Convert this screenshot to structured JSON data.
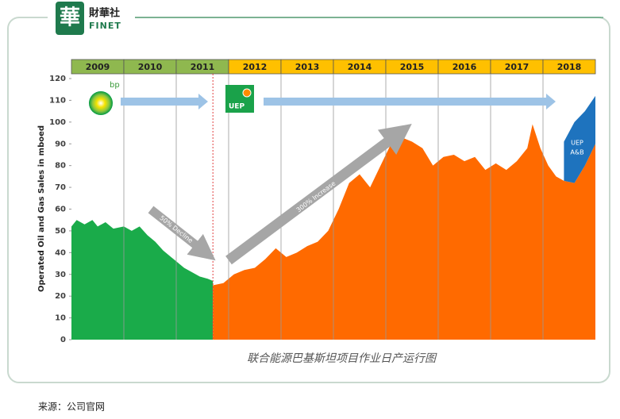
{
  "logo": {
    "glyph": "華",
    "name": "財華社",
    "latin": "FINET"
  },
  "source": "来源：公司官网",
  "chart_data": {
    "type": "area",
    "title": "联合能源巴基斯坦项目作业日产运行图",
    "y_label": "Operated Oil and Gas Sales in mboed",
    "categories": [
      "2009",
      "2010",
      "2011",
      "2012",
      "2013",
      "2014",
      "2015",
      "2016",
      "2017",
      "2018"
    ],
    "category_colors": [
      "#8fb84f",
      "#8fb84f",
      "#8fb84f",
      "#ffc000",
      "#ffc000",
      "#ffc000",
      "#ffc000",
      "#ffc000",
      "#ffc000",
      "#ffc000"
    ],
    "xlim": [
      2009,
      2019
    ],
    "ylim": [
      0,
      120
    ],
    "yticks": [
      0,
      10,
      20,
      30,
      40,
      50,
      60,
      70,
      80,
      90,
      100,
      110,
      120
    ],
    "divider_x": 2011.7,
    "annotations": [
      "50% Decline",
      "300% Increase",
      "bp",
      "UEP",
      "UEP",
      "A&B"
    ],
    "series": [
      {
        "color": "#1aab4a",
        "x": [
          2009,
          2009.1,
          2009.25,
          2009.4,
          2009.5,
          2009.65,
          2009.8,
          2010,
          2010.15,
          2010.3,
          2010.45,
          2010.6,
          2010.75,
          2010.9,
          2011,
          2011.15,
          2011.3,
          2011.45,
          2011.6,
          2011.7
        ],
        "values": [
          52,
          55,
          53,
          55,
          52,
          54,
          51,
          52,
          50,
          52,
          48,
          45,
          41,
          38,
          36,
          33,
          31,
          29,
          28,
          27
        ]
      },
      {
        "color": "#ff6a00",
        "x": [
          2011.7,
          2011.9,
          2012.1,
          2012.3,
          2012.5,
          2012.7,
          2012.9,
          2013.1,
          2013.3,
          2013.5,
          2013.7,
          2013.9,
          2014.1,
          2014.3,
          2014.5,
          2014.7,
          2014.9,
          2015.1,
          2015.3,
          2015.5,
          2015.7,
          2015.9,
          2016.1,
          2016.3,
          2016.5,
          2016.7,
          2016.9,
          2017.1,
          2017.3,
          2017.5,
          2017.7,
          2017.8,
          2017.95,
          2018.1,
          2018.25,
          2018.4,
          2018.6,
          2018.8,
          2019
        ],
        "values": [
          25,
          26,
          30,
          32,
          33,
          37,
          42,
          38,
          40,
          43,
          45,
          50,
          60,
          72,
          76,
          70,
          80,
          90,
          93,
          91,
          88,
          80,
          84,
          85,
          82,
          84,
          78,
          81,
          78,
          82,
          88,
          99,
          88,
          80,
          75,
          73,
          72,
          80,
          90
        ]
      },
      {
        "color": "#1e73be",
        "stacked": true,
        "x": [
          2018.4,
          2018.6,
          2018.8,
          2019
        ],
        "values": [
          18,
          28,
          25,
          22
        ]
      }
    ]
  }
}
